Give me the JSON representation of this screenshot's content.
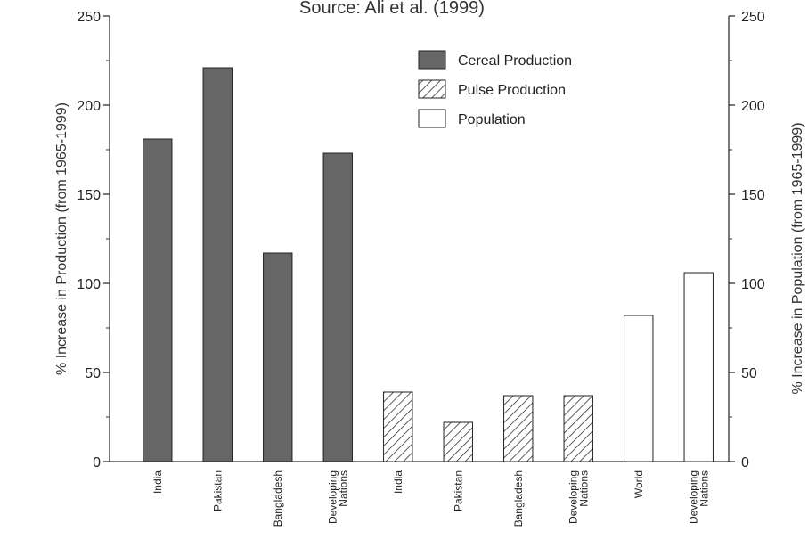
{
  "chart_data": {
    "type": "bar",
    "title": "Source: Ali et al. (1999)",
    "ylabel_left": "% Increase in Production (from 1965-1999)",
    "ylabel_right": "% Increase in Population (from 1965-1999)",
    "ylim": [
      0,
      250
    ],
    "yticks": [
      "0",
      "50",
      "100",
      "150",
      "200",
      "250"
    ],
    "grid": false,
    "legend_position": "top-right",
    "series": [
      {
        "name": "Cereal Production",
        "fill": "solid",
        "color": "#666666",
        "categories": [
          "India",
          "Pakistan",
          "Bangladesh",
          "Developing|Nations"
        ],
        "values": [
          181,
          221,
          117,
          173
        ]
      },
      {
        "name": "Pulse Production",
        "fill": "hatched",
        "color": "#333333",
        "categories": [
          "India",
          "Pakistan",
          "Bangladesh",
          "Developing|Nations"
        ],
        "values": [
          39,
          22,
          37,
          37
        ]
      },
      {
        "name": "Population",
        "fill": "white",
        "color": "#ffffff",
        "categories": [
          "World",
          "Developing|Nations"
        ],
        "values": [
          82,
          106
        ]
      }
    ]
  }
}
